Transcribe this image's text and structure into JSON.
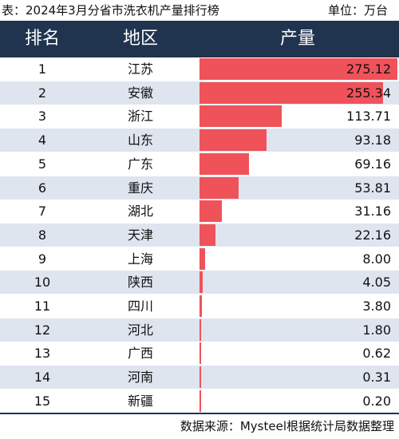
{
  "header": {
    "title": "表：2024年3月分省市洗衣机产量排行榜",
    "unit": "单位：万台"
  },
  "table_headers": {
    "rank": "排名",
    "region": "地区",
    "value": "产量"
  },
  "colors": {
    "header_bg": "#20334f",
    "bar": "#f0525a",
    "row_alt": "#dfe5ef"
  },
  "chart_data": {
    "type": "bar",
    "title": "表：2024年3月分省市洗衣机产量排行榜",
    "unit": "单位：万台",
    "columns": [
      "排名",
      "地区",
      "产量"
    ],
    "ranks": [
      "1",
      "2",
      "3",
      "4",
      "5",
      "6",
      "7",
      "8",
      "9",
      "10",
      "11",
      "12",
      "13",
      "14",
      "15"
    ],
    "categories": [
      "江苏",
      "安徽",
      "浙江",
      "山东",
      "广东",
      "重庆",
      "湖北",
      "天津",
      "上海",
      "陕西",
      "四川",
      "河北",
      "广西",
      "河南",
      "新疆"
    ],
    "values": [
      275.12,
      255.34,
      113.71,
      93.18,
      69.16,
      53.81,
      31.16,
      22.16,
      8.0,
      4.05,
      3.8,
      1.8,
      0.62,
      0.31,
      0.2
    ],
    "value_labels": [
      "275.12",
      "255.34",
      "113.71",
      "93.18",
      "69.16",
      "53.81",
      "31.16",
      "22.16",
      "8.00",
      "4.05",
      "3.80",
      "1.80",
      "0.62",
      "0.31",
      "0.20"
    ],
    "xlim": [
      0,
      275.12
    ]
  },
  "footer": {
    "source": "数据来源：Mysteel根据统计局数据整理"
  }
}
